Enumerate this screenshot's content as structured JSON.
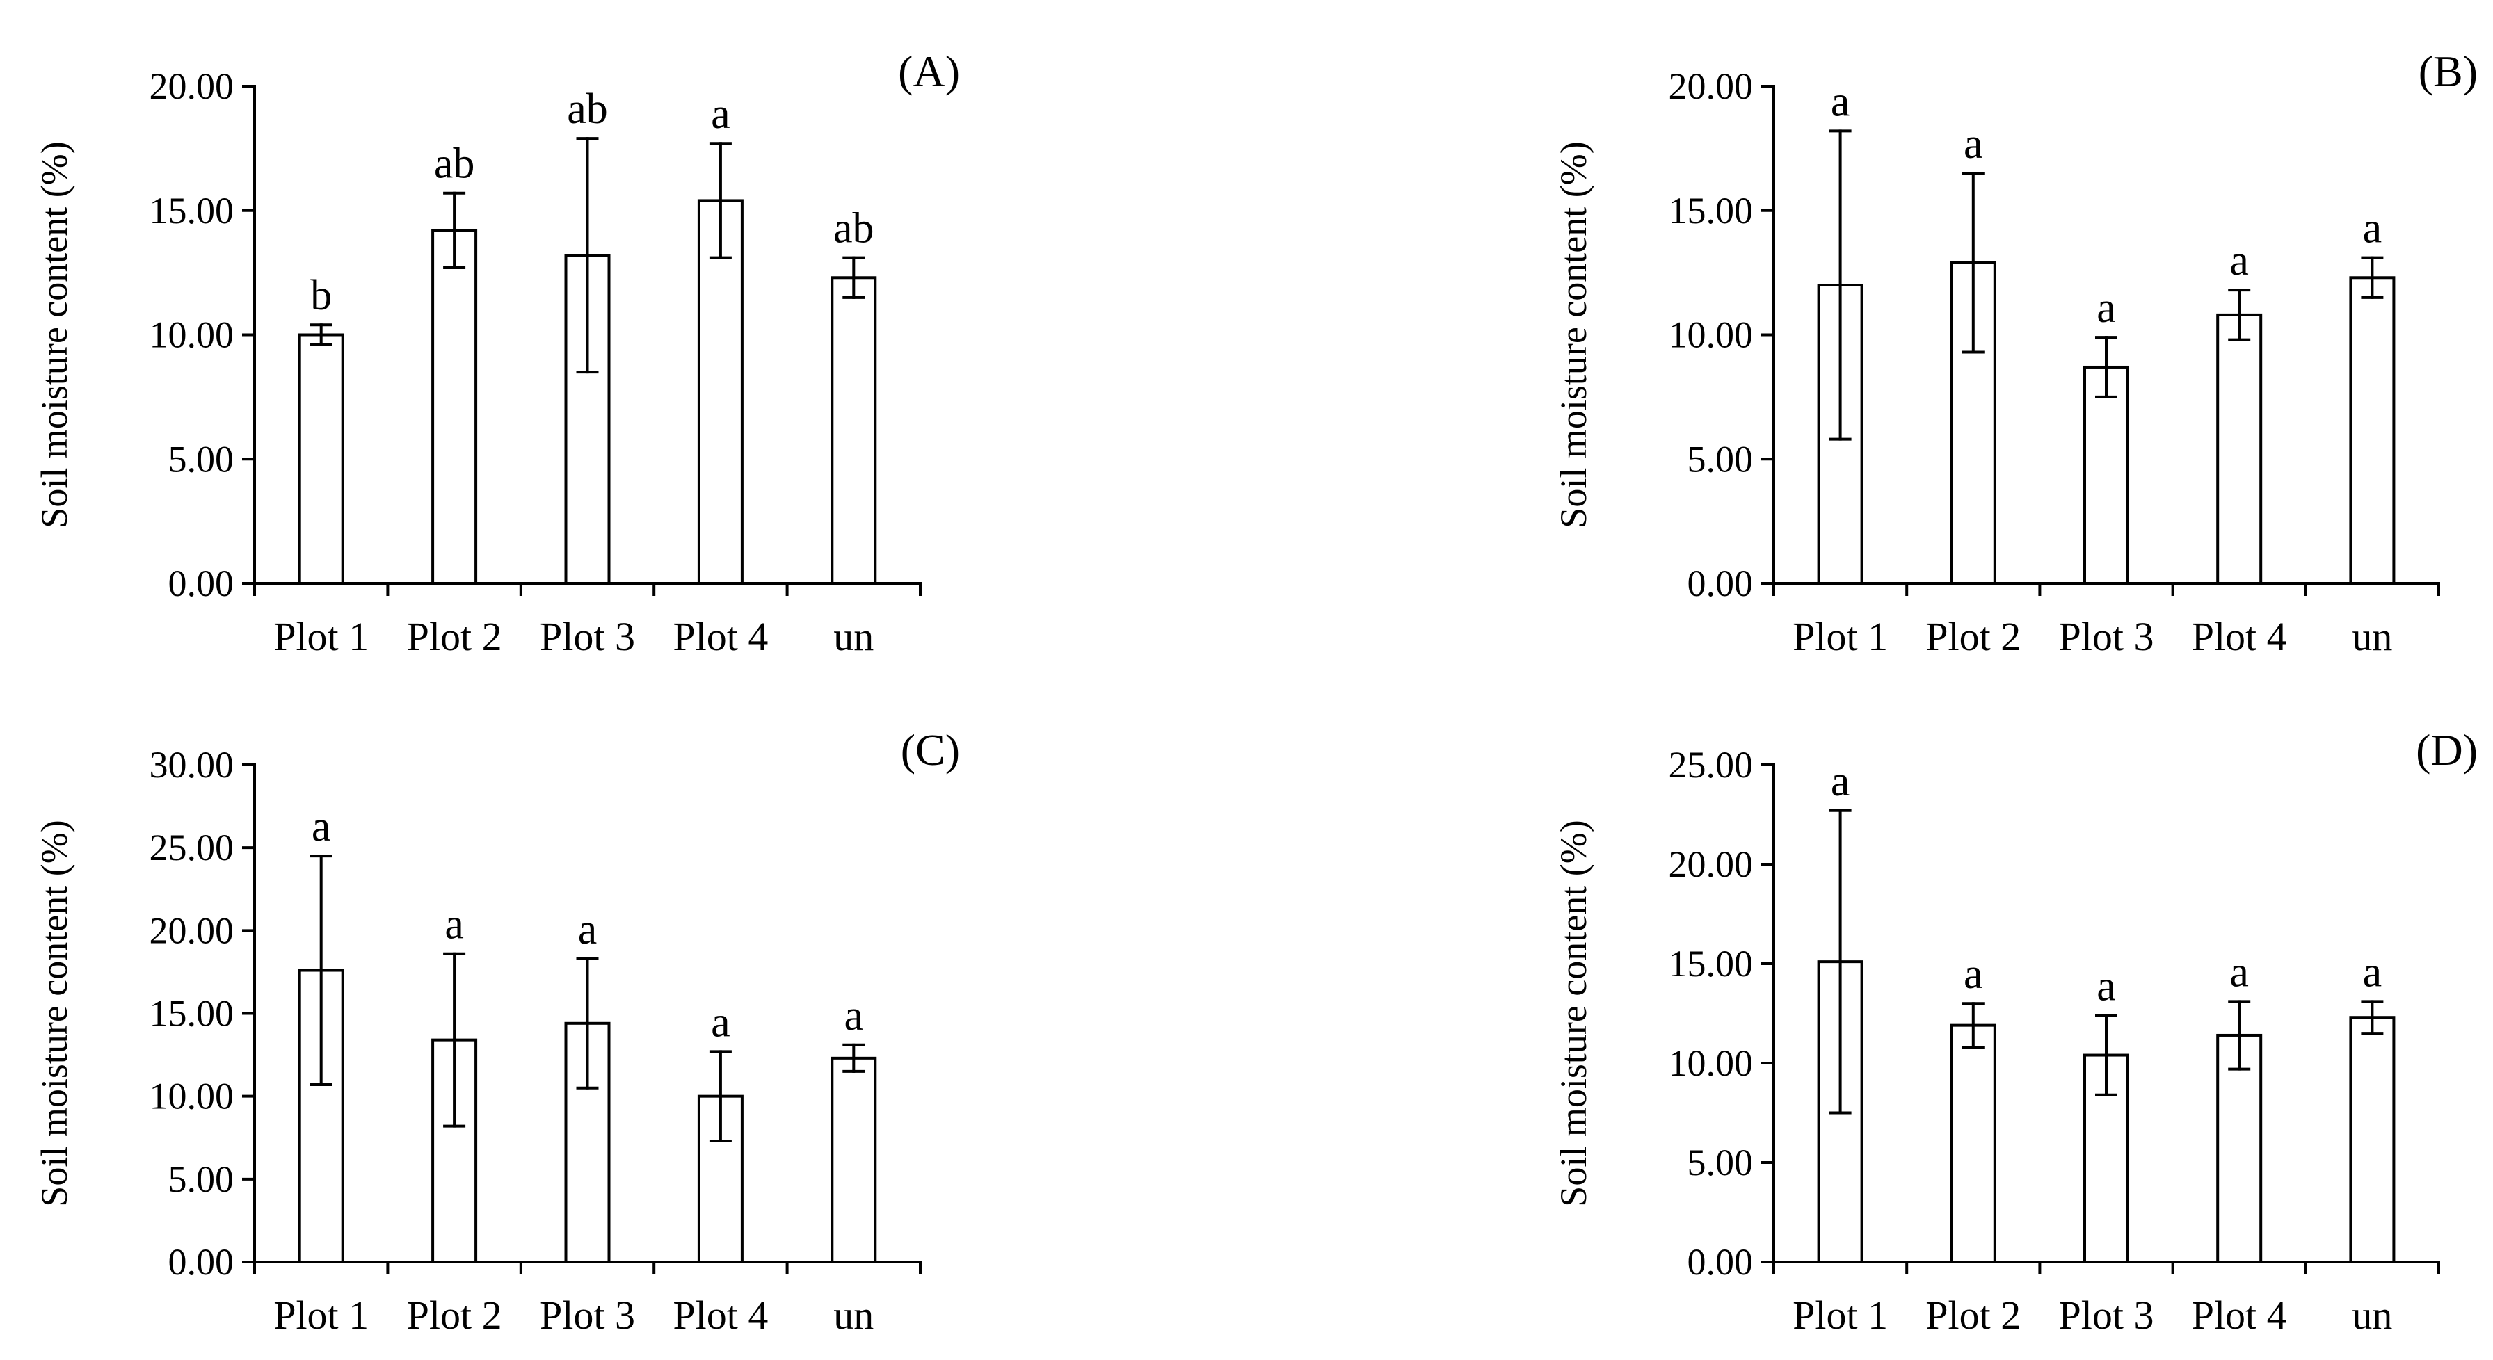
{
  "chart_data": [
    {
      "type": "bar",
      "panel": "(A)",
      "categories": [
        "Plot 1",
        "Plot 2",
        "Plot 3",
        "Plot 4",
        "un"
      ],
      "values": [
        10.0,
        14.2,
        13.2,
        15.4,
        12.3
      ],
      "errors": [
        0.4,
        1.5,
        4.7,
        2.3,
        0.8
      ],
      "letters": [
        "b",
        "ab",
        "ab",
        "a",
        "ab"
      ],
      "ylabel": "Soil moisture content (%)",
      "ylim": [
        0,
        20
      ],
      "yticks": [
        "0.00",
        "5.00",
        "10.00",
        "15.00",
        "20.00"
      ],
      "grid": false
    },
    {
      "type": "bar",
      "panel": "(B)",
      "categories": [
        "Plot 1",
        "Plot 2",
        "Plot 3",
        "Plot 4",
        "un"
      ],
      "values": [
        12.0,
        12.9,
        8.7,
        10.8,
        12.3
      ],
      "errors": [
        6.2,
        3.6,
        1.2,
        1.0,
        0.8
      ],
      "letters": [
        "a",
        "a",
        "a",
        "a",
        "a"
      ],
      "ylabel": "Soil moisture content (%)",
      "ylim": [
        0,
        20
      ],
      "yticks": [
        "0.00",
        "5.00",
        "10.00",
        "15.00",
        "20.00"
      ],
      "grid": false
    },
    {
      "type": "bar",
      "panel": "(C)",
      "categories": [
        "Plot 1",
        "Plot 2",
        "Plot 3",
        "Plot 4",
        "un"
      ],
      "values": [
        17.6,
        13.4,
        14.4,
        10.0,
        12.3
      ],
      "errors": [
        6.9,
        5.2,
        3.9,
        2.7,
        0.8
      ],
      "letters": [
        "a",
        "a",
        "a",
        "a",
        "a"
      ],
      "ylabel": "Soil moisture content (%)",
      "ylim": [
        0,
        30
      ],
      "yticks": [
        "0.00",
        "5.00",
        "10.00",
        "15.00",
        "20.00",
        "25.00",
        "30.00"
      ],
      "grid": false
    },
    {
      "type": "bar",
      "panel": "(D)",
      "categories": [
        "Plot 1",
        "Plot 2",
        "Plot 3",
        "Plot 4",
        "un"
      ],
      "values": [
        15.1,
        11.9,
        10.4,
        11.4,
        12.3
      ],
      "errors": [
        7.6,
        1.1,
        2.0,
        1.7,
        0.8
      ],
      "letters": [
        "a",
        "a",
        "a",
        "a",
        "a"
      ],
      "ylabel": "Soil moisture content (%)",
      "ylim": [
        0,
        25
      ],
      "yticks": [
        "0.00",
        "5.00",
        "10.00",
        "15.00",
        "20.00",
        "25.00"
      ],
      "grid": false
    }
  ]
}
